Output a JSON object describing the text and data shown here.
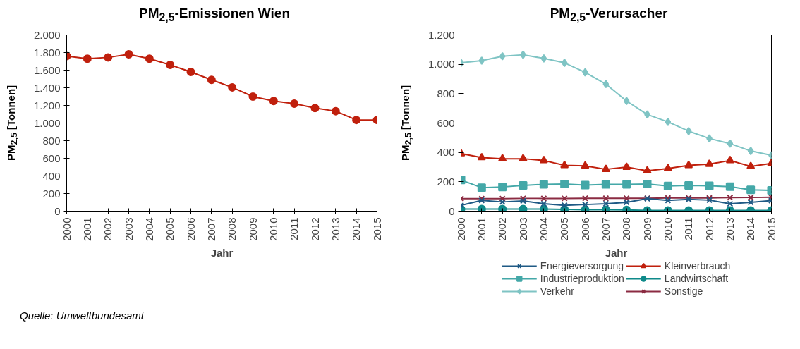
{
  "chart_data": [
    {
      "type": "line",
      "title": "PM$_{2,5}$-Emissionen Wien",
      "xlabel": "Jahr",
      "ylabel": "PM$_{2,5}$ [Tonnen]",
      "x": [
        2000,
        2001,
        2002,
        2003,
        2004,
        2005,
        2006,
        2007,
        2008,
        2009,
        2010,
        2011,
        2012,
        2013,
        2014,
        2015
      ],
      "series": [
        {
          "color": "#c0200d",
          "marker": "circle",
          "values": [
            1760,
            1730,
            1745,
            1780,
            1730,
            1660,
            1580,
            1490,
            1405,
            1300,
            1250,
            1220,
            1170,
            1135,
            1035,
            1035
          ]
        }
      ],
      "xlim": [
        2000,
        2015
      ],
      "xticks": [
        2000,
        2001,
        2002,
        2003,
        2004,
        2005,
        2006,
        2007,
        2008,
        2009,
        2010,
        2011,
        2012,
        2013,
        2014,
        2015
      ],
      "ylim": [
        0,
        2000
      ],
      "yticks": [
        {
          "value": 0,
          "label": "0"
        },
        {
          "value": 200,
          "label": "200"
        },
        {
          "value": 400,
          "label": "400"
        },
        {
          "value": 600,
          "label": "600"
        },
        {
          "value": 800,
          "label": "800"
        },
        {
          "value": 1000,
          "label": "1.000"
        },
        {
          "value": 1200,
          "label": "1.200"
        },
        {
          "value": 1400,
          "label": "1.400"
        },
        {
          "value": 1600,
          "label": "1.600"
        },
        {
          "value": 1800,
          "label": "1.800"
        },
        {
          "value": 2000,
          "label": "2.000"
        }
      ],
      "grid": false,
      "legend": false,
      "line_style": "solid",
      "annotations": [
        "Quelle: Umweltbundesamt"
      ]
    },
    {
      "type": "line",
      "title": "PM$_{2,5}$-Verursacher",
      "xlabel": "Jahr",
      "ylabel": "PM$_{2,5}$ [Tonnen]",
      "x": [
        2000,
        2001,
        2002,
        2003,
        2004,
        2005,
        2006,
        2007,
        2008,
        2009,
        2010,
        2011,
        2012,
        2013,
        2014,
        2015
      ],
      "series": [
        {
          "name": "Energieversorgung",
          "color": "#1f5a85",
          "marker": "cross",
          "values": [
            40,
            73,
            63,
            70,
            50,
            40,
            45,
            50,
            60,
            85,
            73,
            80,
            75,
            50,
            60,
            72
          ]
        },
        {
          "name": "Industrieproduktion",
          "color": "#44a8a8",
          "marker": "square",
          "values": [
            212,
            160,
            165,
            175,
            183,
            185,
            178,
            182,
            183,
            185,
            172,
            175,
            173,
            167,
            145,
            142
          ]
        },
        {
          "name": "Verkehr",
          "color": "#7fc4c4",
          "marker": "diamond",
          "values": [
            1010,
            1025,
            1055,
            1065,
            1040,
            1010,
            945,
            865,
            750,
            658,
            608,
            545,
            495,
            460,
            410,
            380
          ]
        },
        {
          "name": "Kleinverbrauch",
          "color": "#c0200d",
          "marker": "triangle",
          "values": [
            392,
            365,
            357,
            357,
            345,
            312,
            308,
            285,
            300,
            275,
            290,
            312,
            320,
            345,
            305,
            325
          ]
        },
        {
          "name": "Landwirtschaft",
          "color": "#0f8a8a",
          "marker": "circle",
          "values": [
            15,
            15,
            15,
            15,
            15,
            12,
            10,
            10,
            8,
            5,
            5,
            5,
            5,
            5,
            5,
            5
          ]
        },
        {
          "name": "Sonstige",
          "color": "#8b2b42",
          "marker": "cross",
          "values": [
            85,
            85,
            85,
            87,
            87,
            87,
            88,
            88,
            88,
            88,
            90,
            90,
            90,
            92,
            93,
            95
          ]
        }
      ],
      "xlim": [
        2000,
        2015
      ],
      "xticks": [
        2000,
        2001,
        2002,
        2003,
        2004,
        2005,
        2006,
        2007,
        2008,
        2009,
        2010,
        2011,
        2012,
        2013,
        2014,
        2015
      ],
      "ylim": [
        0,
        1200
      ],
      "yticks": [
        {
          "value": 0,
          "label": "0"
        },
        {
          "value": 200,
          "label": "200"
        },
        {
          "value": 400,
          "label": "400"
        },
        {
          "value": 600,
          "label": "600"
        },
        {
          "value": 800,
          "label": "800"
        },
        {
          "value": 1000,
          "label": "1.000"
        },
        {
          "value": 1200,
          "label": "1.200"
        }
      ],
      "grid": false,
      "legend": "bottom",
      "line_style": "solid"
    }
  ]
}
